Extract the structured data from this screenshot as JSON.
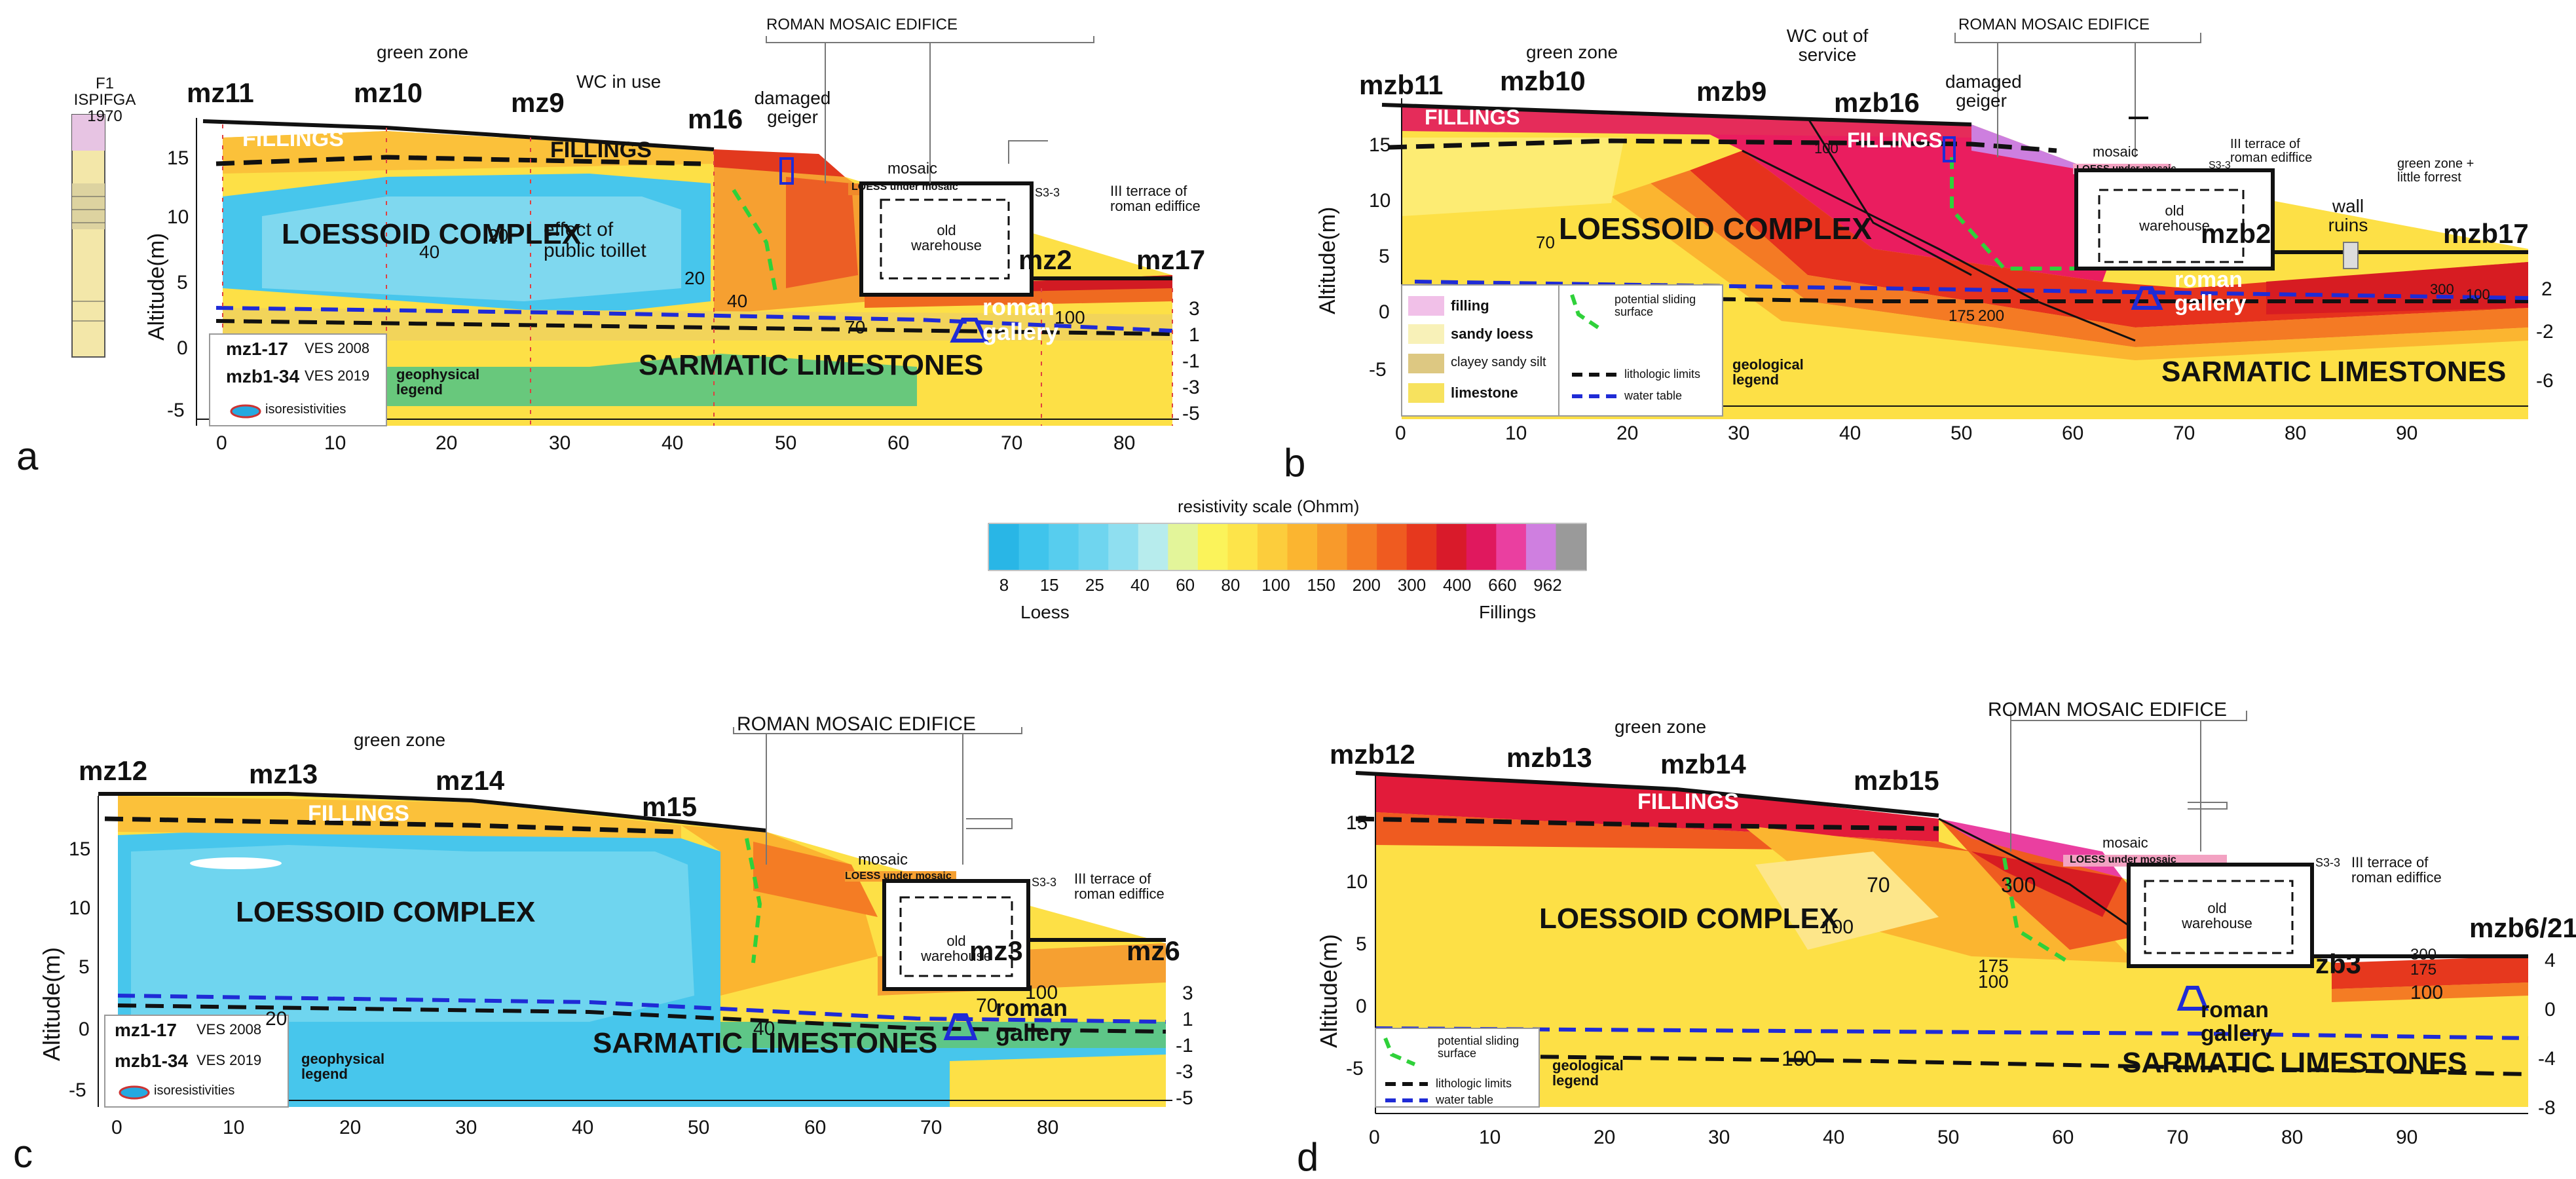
{
  "panel_letters": [
    "a",
    "b",
    "c",
    "d"
  ],
  "common": {
    "axis_y_label": "Altitude(m)",
    "roman_mosaic": "ROMAN MOSAIC  EDIFICE",
    "green_zone": "green zone",
    "mosaic": "mosaic",
    "loess_under_mosaic": "LOESS under mosaic",
    "s33": "S3-3",
    "iii_terrace": "III terrace of roman ediffice",
    "old_warehouse": "old warehouse",
    "loessoid": "LOESSOID COMPLEX",
    "sarmatic": "SARMATIC LIMESTONES",
    "fillings": "FILLINGS",
    "roman_gallery": "roman gallery"
  },
  "panel_a": {
    "borehole_title": "F1 ISPIFGA 1970",
    "wc": "WC in use",
    "damaged_geiger": "damaged geiger",
    "effect_toilet": "effect of public toillet",
    "stations": [
      "mz11",
      "mz10",
      "mz9",
      "m16",
      "mz2",
      "mz17"
    ],
    "x_ticks": [
      "0",
      "10",
      "20",
      "30",
      "40",
      "50",
      "60",
      "70",
      "80"
    ],
    "y_ticks": [
      "15",
      "10",
      "5",
      "0",
      "-5"
    ],
    "right_ticks": [
      "3",
      "1",
      "-1",
      "-3",
      "-5"
    ],
    "contours": [
      "40",
      "20",
      "20",
      "40",
      "70",
      "100"
    ],
    "legend": {
      "ves1": "mz1-17",
      "ves1_year": "VES 2008",
      "ves2": "mzb1-34",
      "ves2_year": "VES 2019",
      "iso": "isoresistivities",
      "title": "geophysical legend"
    }
  },
  "panel_b": {
    "wc": "WC out of service",
    "damaged_geiger": "damaged geiger",
    "iii_terrace": "III terrace of roman ediffice",
    "green_forest": "green zone + little forrest",
    "wall_ruins": "wall ruins",
    "stations": [
      "mzb11",
      "mzb10",
      "mzb9",
      "mzb16",
      "mzb2",
      "mzb17"
    ],
    "x_ticks": [
      "0",
      "10",
      "20",
      "30",
      "40",
      "50",
      "60",
      "70",
      "80",
      "90"
    ],
    "y_ticks": [
      "15",
      "10",
      "5",
      "0",
      "-5"
    ],
    "right_ticks": [
      "2",
      "-2",
      "-6"
    ],
    "contours": [
      "70",
      "100",
      "175",
      "200",
      "300",
      "100"
    ],
    "legend": {
      "filling": "filling",
      "sandy": "sandy loess",
      "clayey": "clayey sandy silt",
      "lime": "limestone",
      "sliding": "potential sliding surface",
      "litho": "lithologic limits",
      "water": "water table",
      "title": "geological legend"
    }
  },
  "panel_c": {
    "stations": [
      "mz12",
      "mz13",
      "mz14",
      "m15",
      "mz3",
      "mz6"
    ],
    "x_ticks": [
      "0",
      "10",
      "20",
      "30",
      "40",
      "50",
      "60",
      "70",
      "80"
    ],
    "y_ticks": [
      "15",
      "10",
      "5",
      "0",
      "-5"
    ],
    "right_ticks": [
      "3",
      "1",
      "-1",
      "-3",
      "-5"
    ],
    "contours": [
      "20",
      "40",
      "70",
      "100"
    ],
    "legend": {
      "ves1": "mz1-17",
      "ves1_year": "VES 2008",
      "ves2": "mzb1-34",
      "ves2_year": "VES 2019",
      "iso": "isoresistivities",
      "title": "geophysical legend"
    }
  },
  "panel_d": {
    "stations": [
      "mzb12",
      "mzb13",
      "mzb14",
      "mzb15",
      "zb3",
      "mzb6/21"
    ],
    "x_ticks": [
      "0",
      "10",
      "20",
      "30",
      "40",
      "50",
      "60",
      "70",
      "80",
      "90"
    ],
    "y_ticks": [
      "15",
      "10",
      "5",
      "0",
      "-5"
    ],
    "right_ticks": [
      "4",
      "0",
      "-4",
      "-8"
    ],
    "contours": [
      "70",
      "100",
      "300",
      "175",
      "100",
      "100",
      "300",
      "175",
      "100"
    ],
    "legend": {
      "sliding": "potential sliding surface",
      "litho": "lithologic limits",
      "water": "water table",
      "title": "geological legend"
    }
  },
  "scale": {
    "title": "resistivity scale (Ohmm)",
    "ticks": [
      "8",
      "15",
      "25",
      "40",
      "60",
      "80",
      "100",
      "150",
      "200",
      "300",
      "400",
      "660",
      "962"
    ],
    "low_label": "Loess",
    "high_label": "Fillings",
    "colors": [
      "#29b6e6",
      "#3fc4ec",
      "#57cdee",
      "#6fd5ef",
      "#8fdff0",
      "#b7eced",
      "#e3f59a",
      "#fbf35a",
      "#fde44a",
      "#fccd3c",
      "#fbb530",
      "#f89a2b",
      "#f47c24",
      "#ef5b20",
      "#e6381e",
      "#d91a2a",
      "#e0185e",
      "#ea3fa0",
      "#cf7fe0",
      "#9a9a9a"
    ]
  }
}
